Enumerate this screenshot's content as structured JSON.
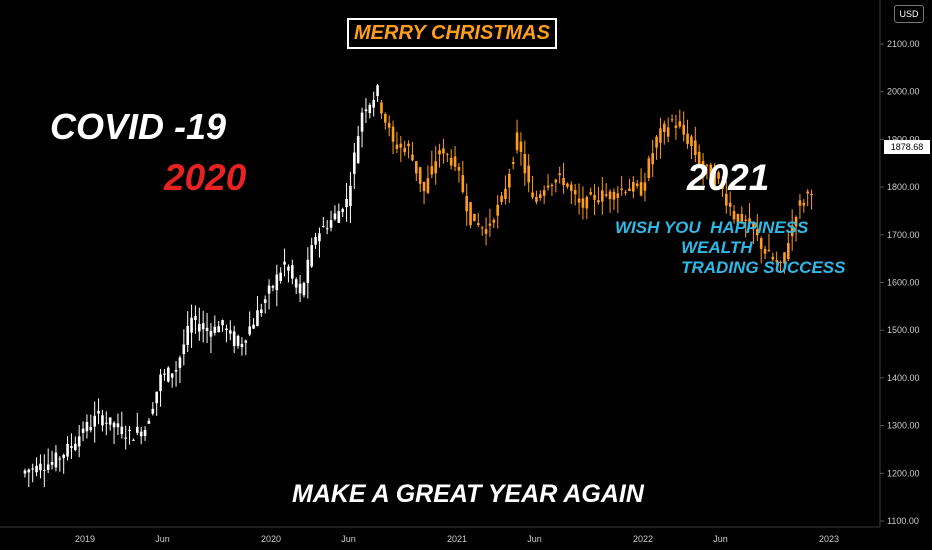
{
  "annotations": {
    "covid": "COVID -19",
    "year_2020": "2020",
    "year_2021": "2021",
    "wish_lines": [
      "WISH YOU  HAPPINESS",
      "              WEALTH",
      "              TRADING SUCCESS"
    ],
    "great_year": "MAKE A GREAT YEAR AGAIN",
    "merry": "MERRY CHRISTMAS"
  },
  "currency_button": "USD",
  "last_price": "1878.68",
  "colors": {
    "bullish_white": "#ffffff",
    "bearish_orange": "#ff9d1c",
    "red_text": "#e62222",
    "cyan_text": "#2fb8e6",
    "axis_text": "#cccccc"
  },
  "chart_data": {
    "type": "candlestick",
    "title": "",
    "xlabel": "",
    "ylabel": "",
    "currency": "USD",
    "grid": false,
    "x_ticks": [
      "2019",
      "Jun",
      "2020",
      "Jun",
      "2021",
      "Jun",
      "2022",
      "Jun",
      "2023"
    ],
    "y_ticks": [
      "1100.00",
      "1200.00",
      "1300.00",
      "1400.00",
      "1500.00",
      "1600.00",
      "1700.00",
      "1800.00",
      "1900.00",
      "2000.00",
      "2100.00"
    ],
    "ylim": [
      1100,
      2130
    ],
    "xlim": [
      "2018-09",
      "2023-03"
    ],
    "current_price": 1878.68,
    "series": [
      {
        "color": "white",
        "points": [
          [
            "2018-09",
            1200
          ],
          [
            "2018-10",
            1215
          ],
          [
            "2018-11",
            1222
          ],
          [
            "2018-12",
            1250
          ],
          [
            "2019-01",
            1290
          ],
          [
            "2019-02",
            1320
          ],
          [
            "2019-03",
            1298
          ],
          [
            "2019-04",
            1280
          ],
          [
            "2019-05",
            1295
          ],
          [
            "2019-06",
            1400
          ],
          [
            "2019-07",
            1420
          ],
          [
            "2019-08",
            1520
          ],
          [
            "2019-09",
            1500
          ],
          [
            "2019-10",
            1510
          ],
          [
            "2019-11",
            1465
          ],
          [
            "2019-12",
            1520
          ],
          [
            "2020-01",
            1580
          ],
          [
            "2020-02",
            1640
          ],
          [
            "2020-03",
            1570
          ],
          [
            "2020-04",
            1700
          ],
          [
            "2020-05",
            1730
          ],
          [
            "2020-06",
            1770
          ],
          [
            "2020-07",
            1960
          ],
          [
            "2020-08",
            2000
          ]
        ]
      },
      {
        "color": "orange",
        "points": [
          [
            "2020-08",
            1990
          ],
          [
            "2020-09",
            1890
          ],
          [
            "2020-10",
            1880
          ],
          [
            "2020-11",
            1790
          ],
          [
            "2020-12",
            1880
          ],
          [
            "2021-01",
            1850
          ],
          [
            "2021-02",
            1735
          ],
          [
            "2021-03",
            1710
          ],
          [
            "2021-04",
            1770
          ],
          [
            "2021-05",
            1900
          ],
          [
            "2021-06",
            1770
          ],
          [
            "2021-07",
            1815
          ],
          [
            "2021-08",
            1815
          ],
          [
            "2021-09",
            1760
          ],
          [
            "2021-10",
            1780
          ],
          [
            "2021-11",
            1785
          ],
          [
            "2021-12",
            1800
          ],
          [
            "2022-01",
            1795
          ],
          [
            "2022-02",
            1900
          ],
          [
            "2022-03",
            1940
          ],
          [
            "2022-04",
            1900
          ],
          [
            "2022-05",
            1840
          ],
          [
            "2022-06",
            1810
          ],
          [
            "2022-07",
            1740
          ],
          [
            "2022-08",
            1720
          ],
          [
            "2022-09",
            1665
          ],
          [
            "2022-10",
            1630
          ],
          [
            "2022-11",
            1750
          ],
          [
            "2022-12",
            1800
          ]
        ]
      }
    ]
  }
}
